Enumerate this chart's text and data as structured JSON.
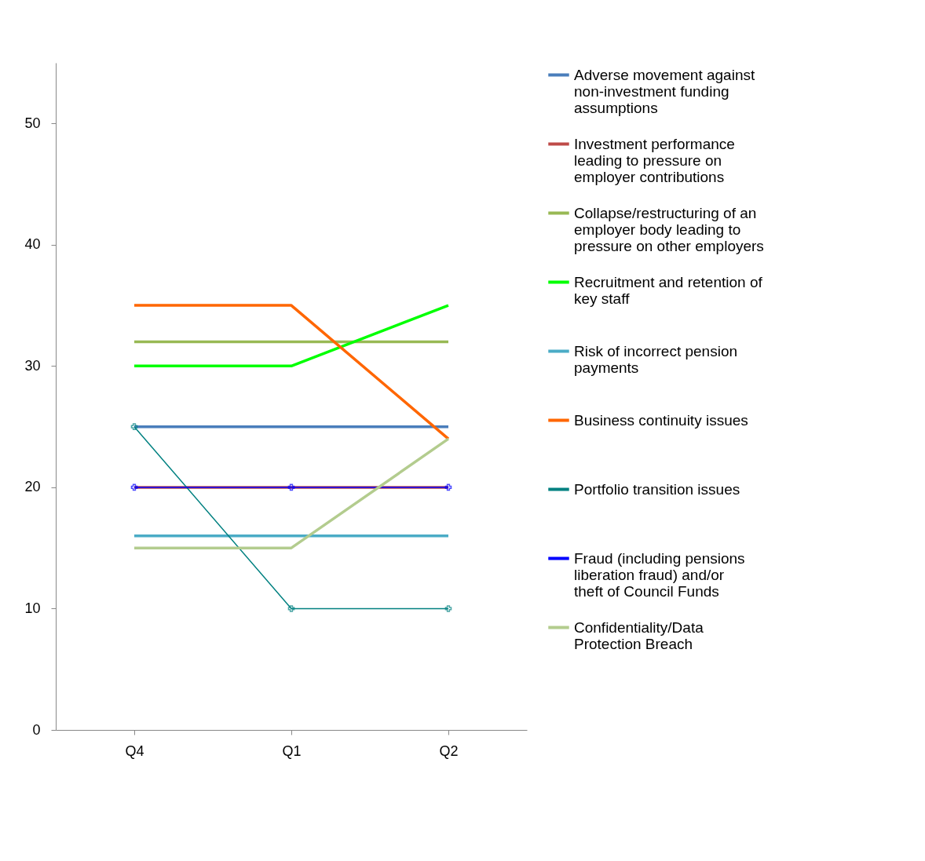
{
  "chart_data": {
    "type": "line",
    "categories": [
      "Q4",
      "Q1",
      "Q2"
    ],
    "ylim": [
      0,
      55
    ],
    "yticks": [
      0,
      10,
      20,
      30,
      40,
      50
    ],
    "grid": false,
    "legend": "right",
    "series": [
      {
        "name": "Adverse movement against non-investment funding assumptions",
        "color": "#4a7ebb",
        "values": [
          25,
          25,
          25
        ]
      },
      {
        "name": "Investment performance leading to pressure on employer contributions",
        "color": "#be4b48",
        "values": [
          20,
          20,
          20
        ]
      },
      {
        "name": "Collapse/restructuring of an employer body leading to pressure on other employers",
        "color": "#98b954",
        "values": [
          32,
          32,
          32
        ]
      },
      {
        "name": "Recruitment and retention of key staff",
        "color": "#00ff00",
        "values": [
          30,
          30,
          35
        ]
      },
      {
        "name": "Risk of incorrect pension payments",
        "color": "#4bacc6",
        "values": [
          16,
          16,
          16
        ]
      },
      {
        "name": "Business continuity issues",
        "color": "#ff6600",
        "values": [
          35,
          35,
          24
        ]
      },
      {
        "name": "Portfolio transition issues",
        "color": "#008080",
        "values": [
          25,
          10,
          10
        ],
        "marker": "cross"
      },
      {
        "name": "Fraud (including pensions liberation fraud) and/or theft of Council Funds",
        "color": "#0000ff",
        "values": [
          20,
          20,
          20
        ],
        "marker": "cross"
      },
      {
        "name": "Confidentiality/Data Protection Breach",
        "color": "#b3cc8e",
        "values": [
          15,
          15,
          24
        ]
      }
    ]
  }
}
